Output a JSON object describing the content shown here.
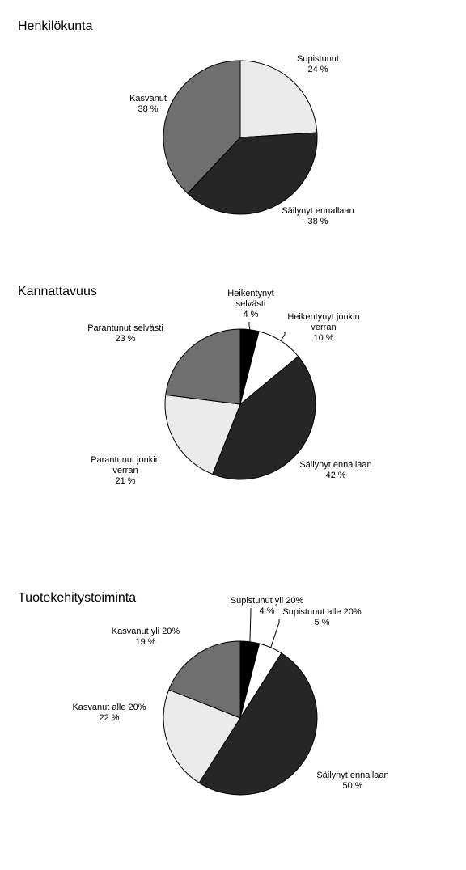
{
  "chart_data": [
    {
      "type": "pie",
      "title": "Henkilökunta",
      "categories": [
        "Supistunut",
        "Säilynyt ennallaan",
        "Kasvanut"
      ],
      "values": [
        24,
        38,
        38
      ],
      "value_labels": [
        "24 %",
        "38 %",
        "38 %"
      ],
      "colors": [
        "#ebebeb",
        "#262626",
        "#6f6f6f"
      ]
    },
    {
      "type": "pie",
      "title": "Kannattavuus",
      "categories": [
        "Heikentynyt selvästi",
        "Heikentynyt jonkin verran",
        "Säilynyt ennallaan",
        "Parantunut jonkin verran",
        "Parantunut selvästi"
      ],
      "values": [
        4,
        10,
        42,
        21,
        23
      ],
      "value_labels": [
        "4 %",
        "10 %",
        "42 %",
        "21 %",
        "23 %"
      ],
      "colors": [
        "#000000",
        "#ffffff",
        "#262626",
        "#ebebeb",
        "#6f6f6f"
      ]
    },
    {
      "type": "pie",
      "title": "Tuotekehitystoiminta",
      "categories": [
        "Supistunut yli 20%",
        "Supistunut alle 20%",
        "Säilynyt ennallaan",
        "Kasvanut alle 20%",
        "Kasvanut yli 20%"
      ],
      "values": [
        4,
        5,
        50,
        22,
        19
      ],
      "value_labels": [
        "4 %",
        "5 %",
        "50 %",
        "22 %",
        "19 %"
      ],
      "colors": [
        "#000000",
        "#ffffff",
        "#262626",
        "#ebebeb",
        "#6f6f6f"
      ]
    }
  ]
}
